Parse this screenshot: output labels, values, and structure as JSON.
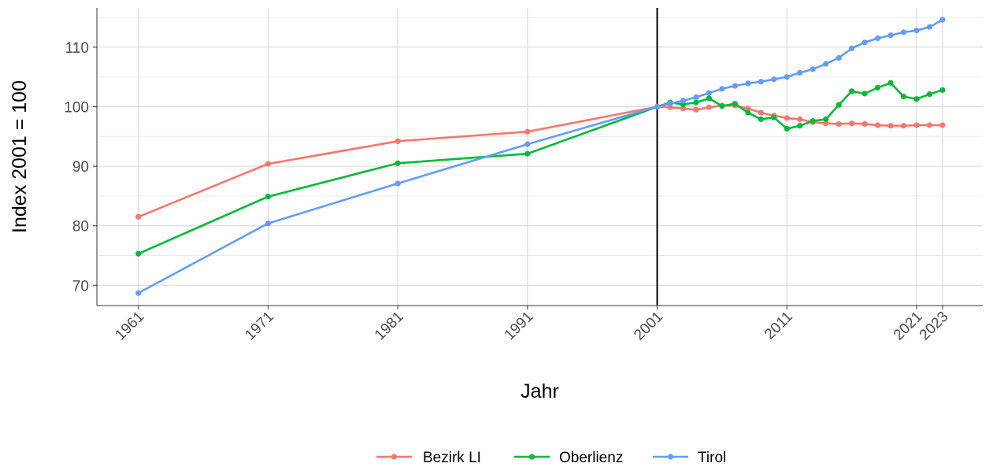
{
  "chart_data": {
    "type": "line",
    "xlabel": "Jahr",
    "ylabel": "Index 2001 = 100",
    "xlim": [
      1957.8,
      1962.0
    ],
    "ylim": [
      66.6,
      116.6
    ],
    "x_ticks": [
      1961,
      1971,
      1981,
      1991,
      2001,
      2011,
      2021,
      2023
    ],
    "y_ticks": [
      70,
      80,
      90,
      100,
      110
    ],
    "reference_line_x": 2001,
    "grid": true,
    "legend_position": "bottom",
    "series": [
      {
        "name": "Bezirk LI",
        "color": "#F8766D",
        "x": [
          1961,
          1971,
          1981,
          1991,
          2001,
          2002,
          2003,
          2004,
          2005,
          2006,
          2007,
          2008,
          2009,
          2010,
          2011,
          2012,
          2013,
          2014,
          2015,
          2016,
          2017,
          2018,
          2019,
          2020,
          2021,
          2022,
          2023
        ],
        "y": [
          81.5,
          90.4,
          94.2,
          95.8,
          100.0,
          99.9,
          99.7,
          99.5,
          99.9,
          100.2,
          100.2,
          99.7,
          99.0,
          98.5,
          98.1,
          97.9,
          97.4,
          97.2,
          97.1,
          97.2,
          97.1,
          96.9,
          96.8,
          96.8,
          96.9,
          96.9,
          96.9
        ]
      },
      {
        "name": "Oberlienz",
        "color": "#00BA38",
        "x": [
          1961,
          1971,
          1981,
          1991,
          2001,
          2002,
          2003,
          2004,
          2005,
          2006,
          2007,
          2008,
          2009,
          2010,
          2011,
          2012,
          2013,
          2014,
          2015,
          2016,
          2017,
          2018,
          2019,
          2020,
          2021,
          2022,
          2023
        ],
        "y": [
          75.3,
          84.9,
          90.5,
          92.1,
          100.0,
          100.7,
          100.4,
          100.7,
          101.4,
          100.1,
          100.5,
          99.0,
          97.9,
          98.2,
          96.3,
          96.8,
          97.6,
          97.9,
          100.3,
          102.6,
          102.2,
          103.2,
          104.0,
          101.7,
          101.3,
          102.1,
          102.8
        ]
      },
      {
        "name": "Tirol",
        "color": "#619CFF",
        "x": [
          1961,
          1971,
          1981,
          1991,
          2001,
          2002,
          2003,
          2004,
          2005,
          2006,
          2007,
          2008,
          2009,
          2010,
          2011,
          2012,
          2013,
          2014,
          2015,
          2016,
          2017,
          2018,
          2019,
          2020,
          2021,
          2022,
          2023
        ],
        "y": [
          68.7,
          80.4,
          87.1,
          93.7,
          100.0,
          100.5,
          101.0,
          101.6,
          102.3,
          103.0,
          103.5,
          103.9,
          104.2,
          104.6,
          105.0,
          105.7,
          106.3,
          107.2,
          108.2,
          109.8,
          110.8,
          111.5,
          112.0,
          112.5,
          112.8,
          113.4,
          114.6
        ]
      }
    ]
  }
}
